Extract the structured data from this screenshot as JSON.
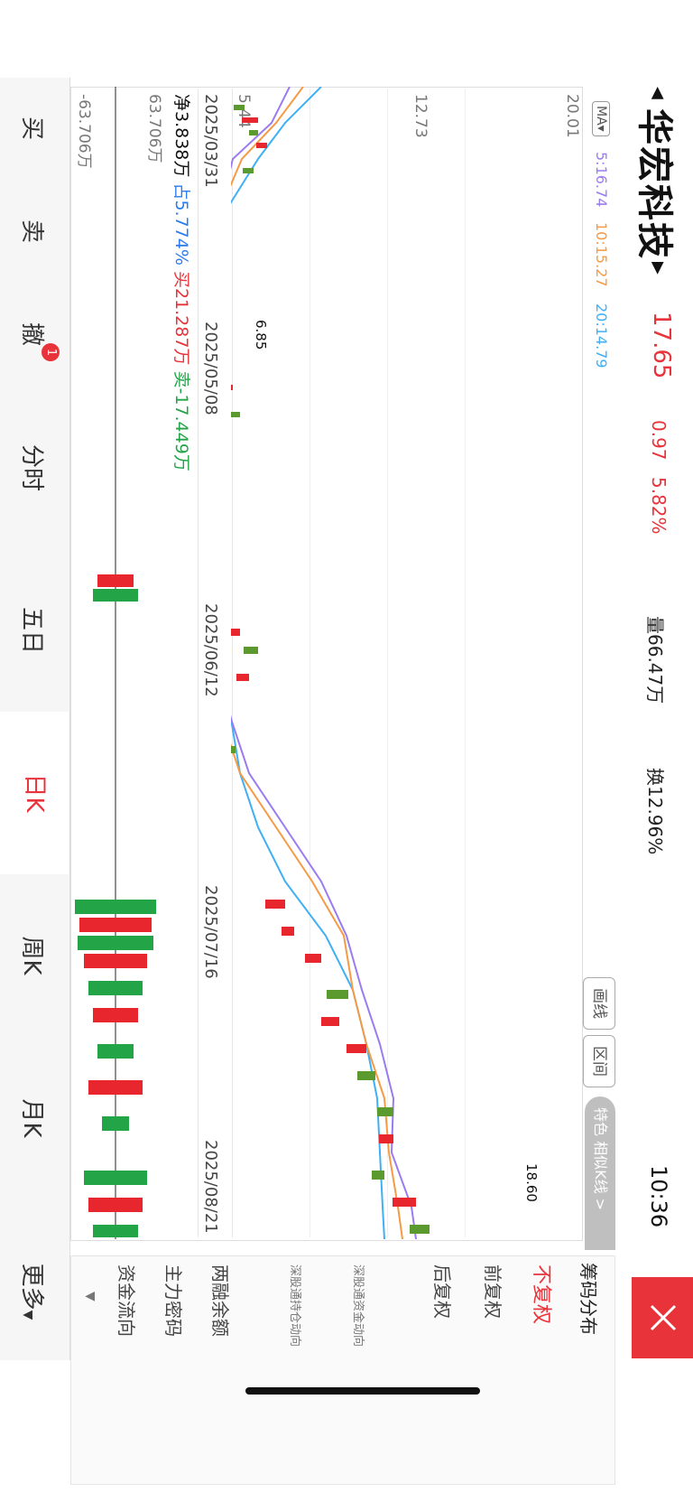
{
  "header": {
    "stock_name": "华宏科技",
    "price": "17.65",
    "change": "0.97",
    "change_pct": "5.82%",
    "volume": "量66.47万",
    "turnover": "换12.96%",
    "time": "10:36"
  },
  "ma": {
    "label": "MA",
    "ma5": "5:16.74",
    "ma10": "10:15.27",
    "ma20": "20:14.79",
    "colors": {
      "ma5": "#9b7bf0",
      "ma10": "#f59a45",
      "ma20": "#3fb0f5"
    }
  },
  "toolbar": {
    "draw_line": "画线",
    "interval": "区间",
    "feature": "特色 相似K线 >"
  },
  "chart": {
    "y_top": "20.01",
    "y_mid": "12.73",
    "y_low": "5.44",
    "high_marker": "18.60",
    "low_marker": "6.85",
    "dates": [
      "2025/03/31",
      "2025/05/08",
      "2025/06/12",
      "2025/07/16",
      "2025/08/21"
    ],
    "up_color": "#e8262d",
    "down_color": "#5a9a2f"
  },
  "fund_flow": {
    "net": "净3.838万",
    "ratio": "占5.774%",
    "buy": "买21.287万",
    "sell": "卖-17.449万",
    "axis_top": "63.706万",
    "axis_bottom": "-63.706万"
  },
  "side_menu": {
    "title": "筹码分布",
    "items": [
      "不复权",
      "前复权",
      "后复权",
      "深股通资金动向",
      "深股通持仓动向",
      "两融余额",
      "主力密码",
      "资金流向"
    ],
    "active_index": 0
  },
  "tabs": [
    "买",
    "卖",
    "撤",
    "分时",
    "五日",
    "日K",
    "周K",
    "月K",
    "更多"
  ],
  "active_tab": 5,
  "badge": "1"
}
